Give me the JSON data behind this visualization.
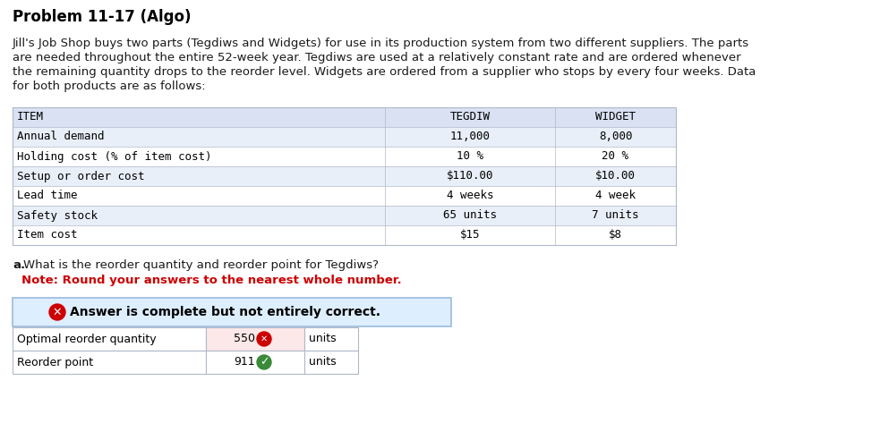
{
  "title": "Problem 11-17 (Algo)",
  "paragraph_lines": [
    "Jill's Job Shop buys two parts (Tegdiws and Widgets) for use in its production system from two different suppliers. The parts",
    "are needed throughout the entire 52-week year. Tegdiws are used at a relatively constant rate and are ordered whenever",
    "the remaining quantity drops to the reorder level. Widgets are ordered from a supplier who stops by every four weeks. Data",
    "for both products are as follows:"
  ],
  "table_header": [
    "ITEM",
    "TEGDIW",
    "WIDGET"
  ],
  "table_rows": [
    [
      "Annual demand",
      "11,000",
      "8,000"
    ],
    [
      "Holding cost (% of item cost)",
      "10 %",
      "20 %"
    ],
    [
      "Setup or order cost",
      "$110.00",
      "$10.00"
    ],
    [
      "Lead time",
      "4 weeks",
      "4 week"
    ],
    [
      "Safety stock",
      "65 units",
      "7 units"
    ],
    [
      "Item cost",
      "$15",
      "$8"
    ]
  ],
  "answer_banner_text": "Answer is complete but not entirely correct.",
  "answer_rows": [
    {
      "label": "Optimal reorder quantity",
      "value": "550",
      "unit": "units",
      "correct": false
    },
    {
      "label": "Reorder point",
      "value": "911",
      "unit": "units",
      "correct": true
    }
  ],
  "bg_color": "#ffffff",
  "table_header_bg": "#d9e1f2",
  "table_row_odd_bg": "#e9eff8",
  "table_row_even_bg": "#ffffff",
  "answer_banner_bg": "#ddeeff",
  "answer_banner_border": "#99bbdd",
  "wrong_cell_bg": "#fce8e8",
  "correct_cell_bg": "#ffffff",
  "title_color": "#000000",
  "para_color": "#1a1a1a",
  "note_color": "#cc0000",
  "table_border_color": "#b0b8c8",
  "title_fontsize": 12,
  "body_fontsize": 9.5,
  "table_fontsize": 9,
  "note_fontsize": 9.5,
  "banner_fontsize": 10
}
